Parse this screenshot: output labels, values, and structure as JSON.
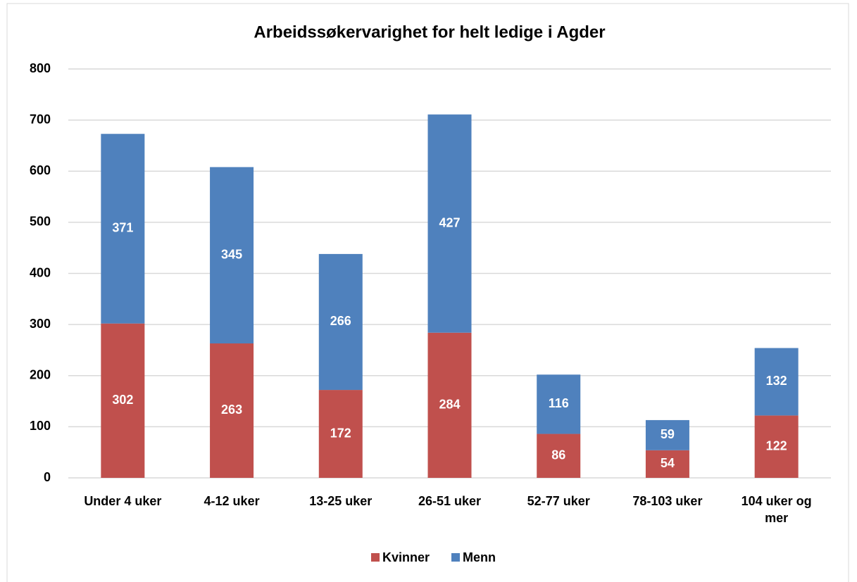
{
  "chart_data": {
    "type": "stacked-bar",
    "title": "Arbeidssøkervarighet for helt ledige i Agder",
    "categories": [
      "Under 4 uker",
      "4-12 uker",
      "13-25 uker",
      "26-51 uker",
      "52-77 uker",
      "78-103 uker",
      "104 uker og mer"
    ],
    "series": [
      {
        "name": "Kvinner",
        "color": "#c0504d",
        "values": [
          302,
          263,
          172,
          284,
          86,
          54,
          122
        ]
      },
      {
        "name": "Menn",
        "color": "#4f81bd",
        "values": [
          371,
          345,
          266,
          427,
          116,
          59,
          132
        ]
      }
    ],
    "ylim": [
      0,
      800
    ],
    "yticks": [
      0,
      100,
      200,
      300,
      400,
      500,
      600,
      700,
      800
    ],
    "grid": true,
    "legend": "bottom"
  }
}
